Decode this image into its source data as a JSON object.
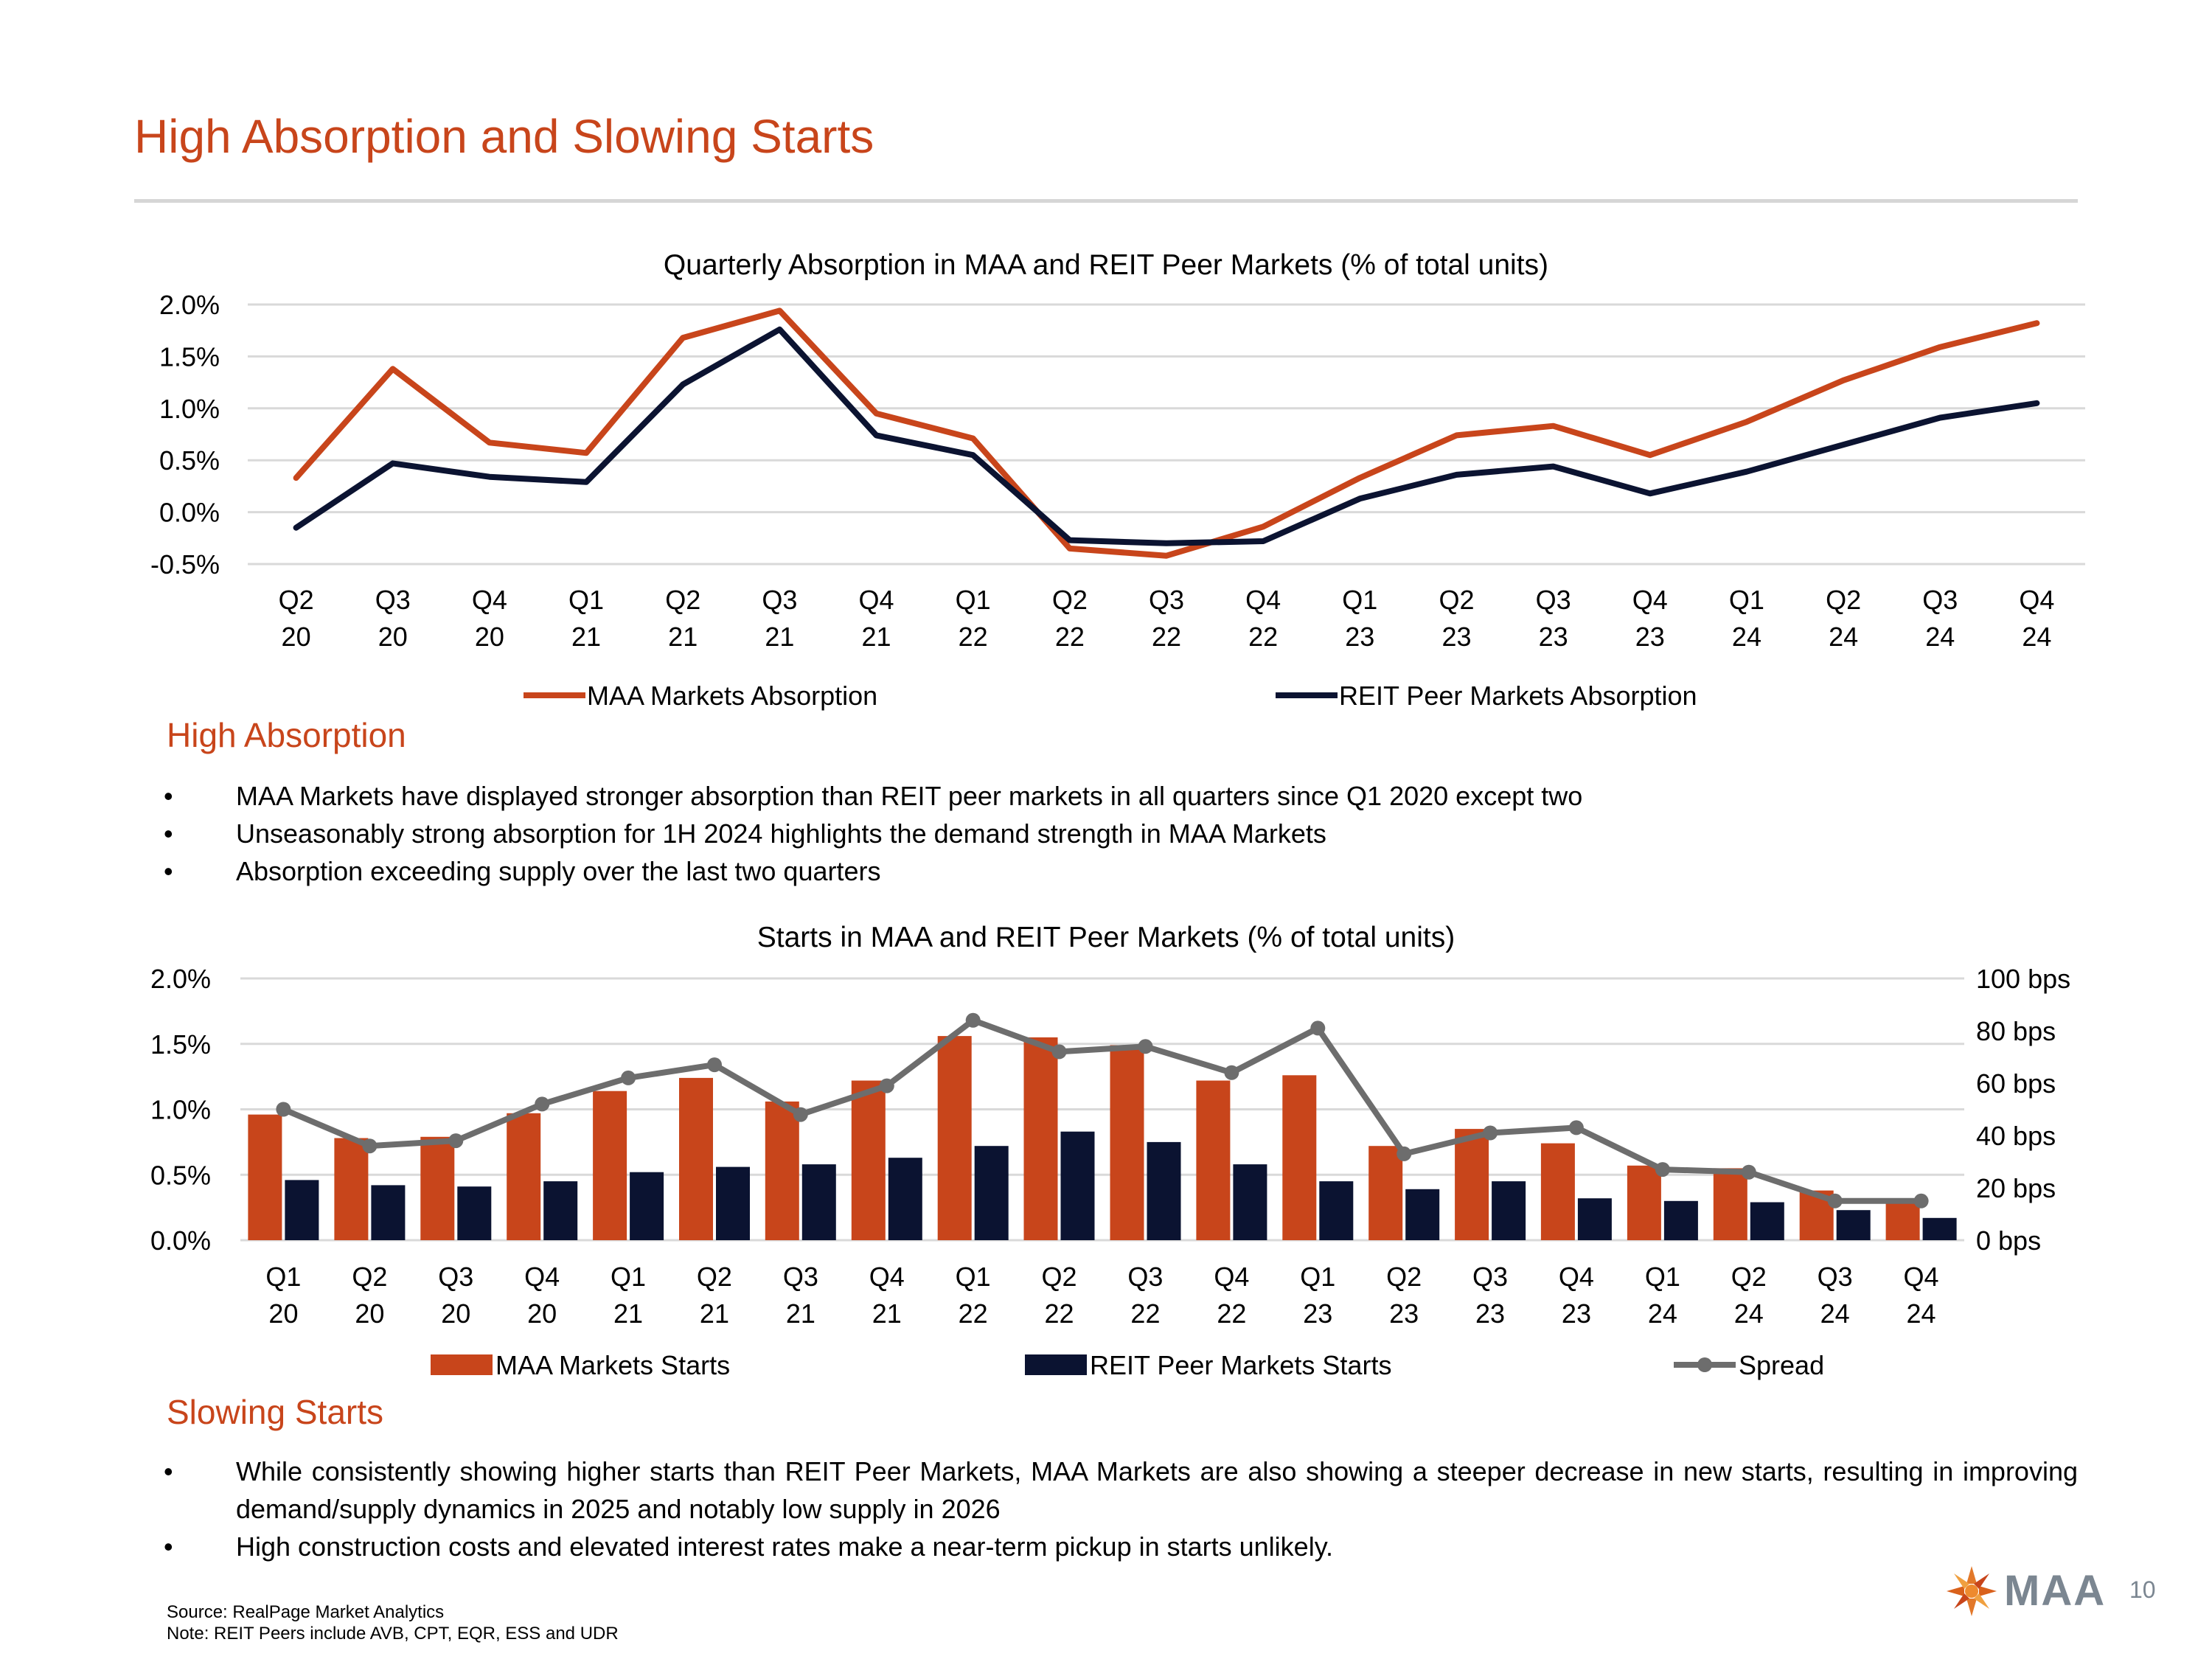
{
  "page": {
    "title": "High Absorption and Slowing Starts",
    "page_number": "10",
    "logo_text": "MAA",
    "source": "Source: RealPage Market Analytics",
    "note": "Note: REIT Peers include  AVB, CPT, EQR, ESS and UDR"
  },
  "section1": {
    "heading": "High Absorption",
    "bullets": [
      "MAA Markets have displayed stronger absorption than REIT peer markets in all quarters since Q1 2020 except two",
      "Unseasonably strong absorption for 1H 2024 highlights the demand strength in MAA Markets",
      "Absorption exceeding supply over the last two quarters"
    ]
  },
  "section2": {
    "heading": "Slowing Starts",
    "bullets": [
      "While consistently showing higher starts than REIT Peer Markets, MAA Markets are also showing a steeper decrease in new starts, resulting in improving demand/supply dynamics in 2025 and notably low supply in 2026",
      "High construction costs and elevated interest rates make a near-term pickup in starts unlikely."
    ]
  },
  "colors": {
    "maa": "#C8451B",
    "reit": "#0B1331",
    "spread": "#6D6D6D",
    "grid": "#D9D9D9"
  },
  "chart_data": [
    {
      "type": "line",
      "title": "Quarterly Absorption in MAA and REIT Peer Markets (% of total units)",
      "categories": [
        [
          "Q2",
          "20"
        ],
        [
          "Q3",
          "20"
        ],
        [
          "Q4",
          "20"
        ],
        [
          "Q1",
          "21"
        ],
        [
          "Q2",
          "21"
        ],
        [
          "Q3",
          "21"
        ],
        [
          "Q4",
          "21"
        ],
        [
          "Q1",
          "22"
        ],
        [
          "Q2",
          "22"
        ],
        [
          "Q3",
          "22"
        ],
        [
          "Q4",
          "22"
        ],
        [
          "Q1",
          "23"
        ],
        [
          "Q2",
          "23"
        ],
        [
          "Q3",
          "23"
        ],
        [
          "Q4",
          "23"
        ],
        [
          "Q1",
          "24"
        ],
        [
          "Q2",
          "24"
        ],
        [
          "Q3",
          "24"
        ],
        [
          "Q4",
          "24"
        ]
      ],
      "y_ticks": [
        "-0.5%",
        "0.0%",
        "0.5%",
        "1.0%",
        "1.5%",
        "2.0%"
      ],
      "ylim": [
        -0.5,
        2.0
      ],
      "series": [
        {
          "name": "MAA Markets Absorption",
          "values": [
            0.33,
            1.38,
            0.67,
            0.57,
            1.68,
            1.94,
            0.95,
            0.71,
            -0.35,
            -0.42,
            -0.14,
            0.33,
            0.74,
            0.83,
            0.55,
            0.87,
            1.27,
            1.59,
            1.82
          ]
        },
        {
          "name": "REIT Peer Markets Absorption",
          "values": [
            -0.15,
            0.47,
            0.34,
            0.29,
            1.23,
            1.76,
            0.74,
            0.55,
            -0.27,
            -0.3,
            -0.28,
            0.13,
            0.36,
            0.44,
            0.18,
            0.39,
            0.65,
            0.91,
            1.05
          ]
        }
      ]
    },
    {
      "type": "bar",
      "title": "Starts in MAA and REIT Peer Markets (% of total units)",
      "categories": [
        [
          "Q1",
          "20"
        ],
        [
          "Q2",
          "20"
        ],
        [
          "Q3",
          "20"
        ],
        [
          "Q4",
          "20"
        ],
        [
          "Q1",
          "21"
        ],
        [
          "Q2",
          "21"
        ],
        [
          "Q3",
          "21"
        ],
        [
          "Q4",
          "21"
        ],
        [
          "Q1",
          "22"
        ],
        [
          "Q2",
          "22"
        ],
        [
          "Q3",
          "22"
        ],
        [
          "Q4",
          "22"
        ],
        [
          "Q1",
          "23"
        ],
        [
          "Q2",
          "23"
        ],
        [
          "Q3",
          "23"
        ],
        [
          "Q4",
          "23"
        ],
        [
          "Q1",
          "24"
        ],
        [
          "Q2",
          "24"
        ],
        [
          "Q3",
          "24"
        ],
        [
          "Q4",
          "24"
        ]
      ],
      "y_ticks": [
        "0.0%",
        "0.5%",
        "1.0%",
        "1.5%",
        "2.0%"
      ],
      "y2_ticks": [
        "0 bps",
        "20 bps",
        "40 bps",
        "60 bps",
        "80 bps",
        "100 bps"
      ],
      "ylim": [
        0,
        2.0
      ],
      "y2lim": [
        0,
        100
      ],
      "series": [
        {
          "name": "MAA Markets Starts",
          "kind": "bar",
          "values": [
            0.96,
            0.78,
            0.79,
            0.97,
            1.14,
            1.24,
            1.06,
            1.22,
            1.56,
            1.55,
            1.49,
            1.22,
            1.26,
            0.72,
            0.85,
            0.74,
            0.57,
            0.55,
            0.38,
            0.32
          ]
        },
        {
          "name": "REIT Peer Markets Starts",
          "kind": "bar",
          "values": [
            0.46,
            0.42,
            0.41,
            0.45,
            0.52,
            0.56,
            0.58,
            0.63,
            0.72,
            0.83,
            0.75,
            0.58,
            0.45,
            0.39,
            0.45,
            0.32,
            0.3,
            0.29,
            0.23,
            0.17
          ]
        },
        {
          "name": "Spread",
          "kind": "line",
          "axis": "right",
          "values": [
            50,
            36,
            38,
            52,
            62,
            67,
            48,
            59,
            84,
            72,
            74,
            64,
            81,
            33,
            41,
            43,
            27,
            26,
            15,
            15
          ]
        }
      ]
    }
  ]
}
